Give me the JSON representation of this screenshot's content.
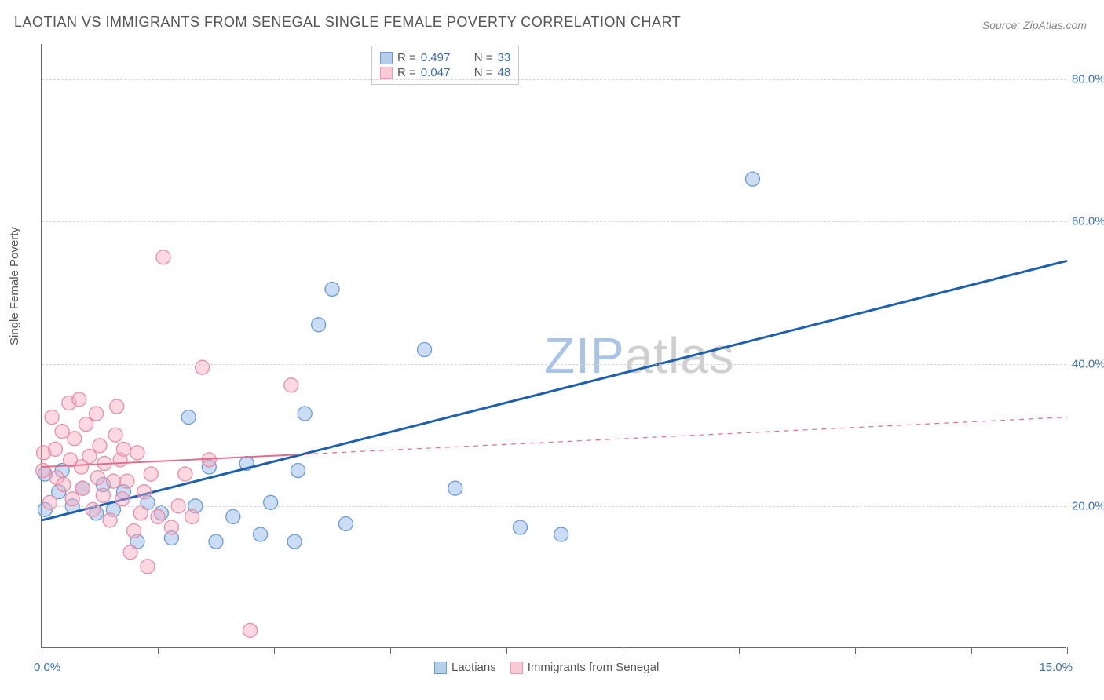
{
  "title": "LAOTIAN VS IMMIGRANTS FROM SENEGAL SINGLE FEMALE POVERTY CORRELATION CHART",
  "source": "Source: ZipAtlas.com",
  "ylabel": "Single Female Poverty",
  "watermark_zip": "ZIP",
  "watermark_atlas": "atlas",
  "chart": {
    "type": "scatter",
    "background_color": "#ffffff",
    "grid_color": "#d5d5d5",
    "axis_color": "#666666",
    "xlim": [
      0.0,
      15.0
    ],
    "ylim": [
      0.0,
      85.0
    ],
    "x_min_label": "0.0%",
    "x_max_label": "15.0%",
    "xtick_positions": [
      0,
      1.7,
      3.4,
      5.1,
      6.8,
      8.5,
      10.2,
      11.9,
      13.6,
      15.0
    ],
    "yticks": [
      {
        "v": 20.0,
        "label": "20.0%"
      },
      {
        "v": 40.0,
        "label": "40.0%"
      },
      {
        "v": 60.0,
        "label": "60.0%"
      },
      {
        "v": 80.0,
        "label": "80.0%"
      }
    ],
    "marker_radius": 9,
    "series": [
      {
        "name": "Laotians",
        "fill": "rgba(140,180,230,0.45)",
        "stroke": "#6a9ad8",
        "trend": {
          "color": "#1d5fb0",
          "width": 3,
          "x1": 0.0,
          "y1": 18.0,
          "x2": 15.0,
          "y2": 54.5,
          "solid_until_x": 15.0
        },
        "points": [
          [
            0.05,
            19.5
          ],
          [
            0.05,
            24.5
          ],
          [
            0.25,
            22.0
          ],
          [
            0.3,
            25.0
          ],
          [
            0.45,
            20.0
          ],
          [
            0.6,
            22.5
          ],
          [
            0.8,
            19.0
          ],
          [
            0.9,
            23.0
          ],
          [
            1.05,
            19.5
          ],
          [
            1.2,
            22.0
          ],
          [
            1.4,
            15.0
          ],
          [
            1.55,
            20.5
          ],
          [
            1.75,
            19.0
          ],
          [
            1.9,
            15.5
          ],
          [
            2.15,
            32.5
          ],
          [
            2.25,
            20.0
          ],
          [
            2.45,
            25.5
          ],
          [
            2.55,
            15.0
          ],
          [
            2.8,
            18.5
          ],
          [
            3.0,
            26.0
          ],
          [
            3.2,
            16.0
          ],
          [
            3.35,
            20.5
          ],
          [
            3.7,
            15.0
          ],
          [
            3.75,
            25.0
          ],
          [
            3.85,
            33.0
          ],
          [
            4.05,
            45.5
          ],
          [
            4.25,
            50.5
          ],
          [
            4.45,
            17.5
          ],
          [
            5.6,
            42.0
          ],
          [
            6.05,
            22.5
          ],
          [
            7.0,
            17.0
          ],
          [
            7.6,
            16.0
          ],
          [
            10.4,
            66.0
          ]
        ]
      },
      {
        "name": "Immigrants from Senegal",
        "fill": "rgba(248,170,190,0.45)",
        "stroke": "#e88da6",
        "trend": {
          "color": "#e06d8a",
          "width": 2,
          "x1": 0.0,
          "y1": 25.5,
          "x2": 15.0,
          "y2": 32.5,
          "solid_until_x": 3.7
        },
        "points": [
          [
            0.02,
            25.0
          ],
          [
            0.03,
            27.5
          ],
          [
            0.12,
            20.5
          ],
          [
            0.15,
            32.5
          ],
          [
            0.2,
            28.0
          ],
          [
            0.22,
            24.0
          ],
          [
            0.3,
            30.5
          ],
          [
            0.32,
            23.0
          ],
          [
            0.4,
            34.5
          ],
          [
            0.42,
            26.5
          ],
          [
            0.45,
            21.0
          ],
          [
            0.48,
            29.5
          ],
          [
            0.55,
            35.0
          ],
          [
            0.58,
            25.5
          ],
          [
            0.6,
            22.5
          ],
          [
            0.65,
            31.5
          ],
          [
            0.7,
            27.0
          ],
          [
            0.75,
            19.5
          ],
          [
            0.8,
            33.0
          ],
          [
            0.82,
            24.0
          ],
          [
            0.85,
            28.5
          ],
          [
            0.9,
            21.5
          ],
          [
            0.92,
            26.0
          ],
          [
            1.0,
            18.0
          ],
          [
            1.05,
            23.5
          ],
          [
            1.08,
            30.0
          ],
          [
            1.1,
            34.0
          ],
          [
            1.15,
            26.5
          ],
          [
            1.18,
            21.0
          ],
          [
            1.2,
            28.0
          ],
          [
            1.25,
            23.5
          ],
          [
            1.3,
            13.5
          ],
          [
            1.35,
            16.5
          ],
          [
            1.4,
            27.5
          ],
          [
            1.45,
            19.0
          ],
          [
            1.5,
            22.0
          ],
          [
            1.55,
            11.5
          ],
          [
            1.6,
            24.5
          ],
          [
            1.7,
            18.5
          ],
          [
            1.78,
            55.0
          ],
          [
            1.9,
            17.0
          ],
          [
            2.0,
            20.0
          ],
          [
            2.1,
            24.5
          ],
          [
            2.2,
            18.5
          ],
          [
            2.35,
            39.5
          ],
          [
            2.45,
            26.5
          ],
          [
            3.05,
            2.5
          ],
          [
            3.65,
            37.0
          ]
        ]
      }
    ]
  },
  "legend_top": {
    "rows": [
      {
        "swatch": "blue",
        "text1": "R =",
        "val1": "0.497",
        "text2": "N =",
        "val2": "33"
      },
      {
        "swatch": "pink",
        "text1": "R =",
        "val1": "0.047",
        "text2": "N =",
        "val2": "48"
      }
    ]
  },
  "legend_bottom": {
    "items": [
      {
        "swatch": "blue",
        "label": "Laotians"
      },
      {
        "swatch": "pink",
        "label": "Immigrants from Senegal"
      }
    ]
  }
}
